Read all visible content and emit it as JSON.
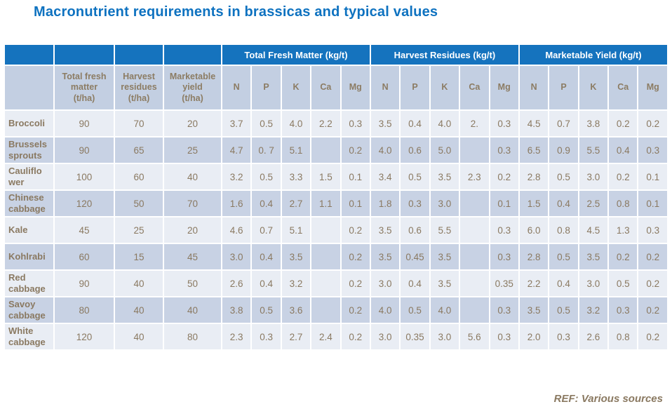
{
  "title": "Macronutrient requirements in brassicas and typical values",
  "footer": {
    "ref": "REF: Various sources"
  },
  "colors": {
    "title_blue": "#0e72c0",
    "header_blue": "#1573be",
    "subheader_bg": "#c3cfe2",
    "row_light": "#e9edf4",
    "row_dark": "#c8d2e4",
    "text_brown": "#8a7961"
  },
  "table": {
    "group_headers": [
      {
        "label": "",
        "span": 1
      },
      {
        "label": "",
        "span": 1
      },
      {
        "label": "",
        "span": 1
      },
      {
        "label": "",
        "span": 1
      },
      {
        "label": "Total Fresh Matter (kg/t)",
        "span": 5
      },
      {
        "label": "Harvest Residues (kg/t)",
        "span": 5
      },
      {
        "label": "Marketable Yield (kg/t)",
        "span": 5
      }
    ],
    "sub_headers": [
      "",
      "Total fresh\nmatter\n(t/ha)",
      "Harvest\nresidues\n(t/ha)",
      "Marketable\nyield\n(t/ha)",
      "N",
      "P",
      "K",
      "Ca",
      "Mg",
      "N",
      "P",
      "K",
      "Ca",
      "Mg",
      "N",
      "P",
      "K",
      "Ca",
      "Mg"
    ],
    "rows": [
      {
        "label": "Broccoli",
        "values": [
          "90",
          "70",
          "20",
          "3.7",
          "0.5",
          "4.0",
          "2.2",
          "0.3",
          "3.5",
          "0.4",
          "4.0",
          "2.",
          "0.3",
          "4.5",
          "0.7",
          "3.8",
          "0.2",
          "0.2"
        ]
      },
      {
        "label": "Brussels\nsprouts",
        "values": [
          "90",
          "65",
          "25",
          "4.7",
          "0. 7",
          "5.1",
          "",
          "0.2",
          "4.0",
          "0.6",
          "5.0",
          "",
          "0.3",
          "6.5",
          "0.9",
          "5.5",
          "0.4",
          "0.3"
        ]
      },
      {
        "label": "Cauliflo\nwer",
        "values": [
          "100",
          "60",
          "40",
          "3.2",
          "0.5",
          "3.3",
          "1.5",
          "0.1",
          "3.4",
          "0.5",
          "3.5",
          "2.3",
          "0.2",
          "2.8",
          "0.5",
          "3.0",
          "0.2",
          "0.1"
        ]
      },
      {
        "label": "Chinese\ncabbage",
        "values": [
          "120",
          "50",
          "70",
          "1.6",
          "0.4",
          "2.7",
          "1.1",
          "0.1",
          "1.8",
          "0.3",
          "3.0",
          "",
          "0.1",
          "1.5",
          "0.4",
          "2.5",
          "0.8",
          "0.1"
        ]
      },
      {
        "label": "Kale",
        "values": [
          "45",
          "25",
          "20",
          "4.6",
          "0.7",
          "5.1",
          "",
          "0.2",
          "3.5",
          "0.6",
          "5.5",
          "",
          "0.3",
          "6.0",
          "0.8",
          "4.5",
          "1.3",
          "0.3"
        ]
      },
      {
        "label": "Kohlrabi",
        "values": [
          "60",
          "15",
          "45",
          "3.0",
          "0.4",
          "3.5",
          "",
          "0.2",
          "3.5",
          "0.45",
          "3.5",
          "",
          "0.3",
          "2.8",
          "0.5",
          "3.5",
          "0.2",
          "0.2"
        ]
      },
      {
        "label": "Red\ncabbage",
        "values": [
          "90",
          "40",
          "50",
          "2.6",
          "0.4",
          "3.2",
          "",
          "0.2",
          "3.0",
          "0.4",
          "3.5",
          "",
          "0.35",
          "2.2",
          "0.4",
          "3.0",
          "0.5",
          "0.2"
        ]
      },
      {
        "label": "Savoy\ncabbage",
        "values": [
          "80",
          "40",
          "40",
          "3.8",
          "0.5",
          "3.6",
          "",
          "0.2",
          "4.0",
          "0.5",
          "4.0",
          "",
          "0.3",
          "3.5",
          "0.5",
          "3.2",
          "0.3",
          "0.2"
        ]
      },
      {
        "label": "White\ncabbage",
        "values": [
          "120",
          "40",
          "80",
          "2.3",
          "0.3",
          "2.7",
          "2.4",
          "0.2",
          "3.0",
          "0.35",
          "3.0",
          "5.6",
          "0.3",
          "2.0",
          "0.3",
          "2.6",
          "0.8",
          "0.2"
        ]
      }
    ]
  }
}
